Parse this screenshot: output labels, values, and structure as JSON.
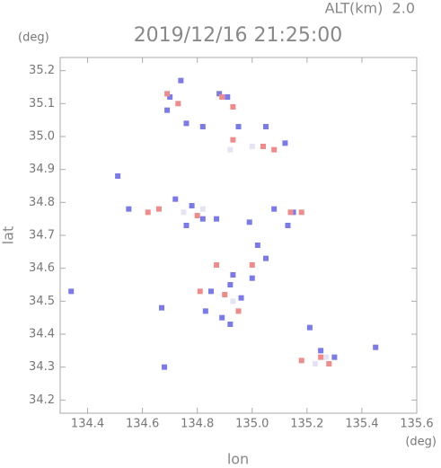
{
  "chart_data": {
    "type": "scatter",
    "title": "2019/12/16 21:25:00",
    "subtitle": "ALT(km)  2.0",
    "x_label": "lon",
    "y_label": "lat",
    "x_unit": "(deg)",
    "y_unit": "(deg)",
    "xlim": [
      134.3,
      135.6
    ],
    "ylim": [
      34.16,
      35.24
    ],
    "xticks": [
      134.4,
      134.6,
      134.8,
      {
        "value": 135,
        "label": "135.0"
      },
      135.2,
      135.4,
      135.6
    ],
    "yticks": [
      34.2,
      34.3,
      34.4,
      34.5,
      34.6,
      34.7,
      34.8,
      34.9,
      {
        "value": 35,
        "label": "35.0"
      },
      35.1,
      35.2
    ],
    "series": [
      {
        "color": "#e4e4f2",
        "x": [
          134.9,
          134.93,
          135.27,
          135.23,
          134.75,
          134.82,
          134.92,
          135.0
        ],
        "values": [
          34.52,
          34.5,
          34.33,
          34.31,
          34.77,
          34.78,
          34.96,
          34.97
        ]
      },
      {
        "color": "#7a7ae8",
        "x": [
          134.74,
          134.7,
          134.69,
          134.76,
          134.82,
          134.88,
          134.91,
          134.95,
          135.05,
          135.12,
          134.51,
          134.55,
          134.72,
          134.78,
          134.82,
          134.87,
          134.76,
          134.99,
          135.08,
          135.13,
          135.02,
          135.05,
          134.93,
          135.0,
          134.85,
          134.92,
          134.89,
          134.83,
          134.67,
          134.34,
          134.92,
          135.21,
          135.3,
          135.25,
          135.45,
          134.68,
          134.96,
          135.15
        ],
        "values": [
          35.17,
          35.12,
          35.08,
          35.04,
          35.03,
          35.13,
          35.12,
          35.03,
          35.03,
          34.98,
          34.88,
          34.78,
          34.81,
          34.79,
          34.75,
          34.75,
          34.73,
          34.74,
          34.78,
          34.73,
          34.67,
          34.63,
          34.58,
          34.57,
          34.53,
          34.55,
          34.45,
          34.47,
          34.48,
          34.53,
          34.43,
          34.42,
          34.33,
          34.35,
          34.36,
          34.3,
          34.51,
          34.77
        ]
      },
      {
        "color": "#ee8c8c",
        "x": [
          134.69,
          134.73,
          134.89,
          134.93,
          135.04,
          135.08,
          134.93,
          134.62,
          134.66,
          134.8,
          135.14,
          135.18,
          135.0,
          134.87,
          134.81,
          134.9,
          134.95,
          135.25,
          135.28,
          135.18
        ],
        "values": [
          35.13,
          35.1,
          35.12,
          35.09,
          34.97,
          34.96,
          34.99,
          34.77,
          34.78,
          34.76,
          34.77,
          34.77,
          34.61,
          34.61,
          34.53,
          34.52,
          34.47,
          34.33,
          34.31,
          34.32
        ]
      }
    ]
  }
}
